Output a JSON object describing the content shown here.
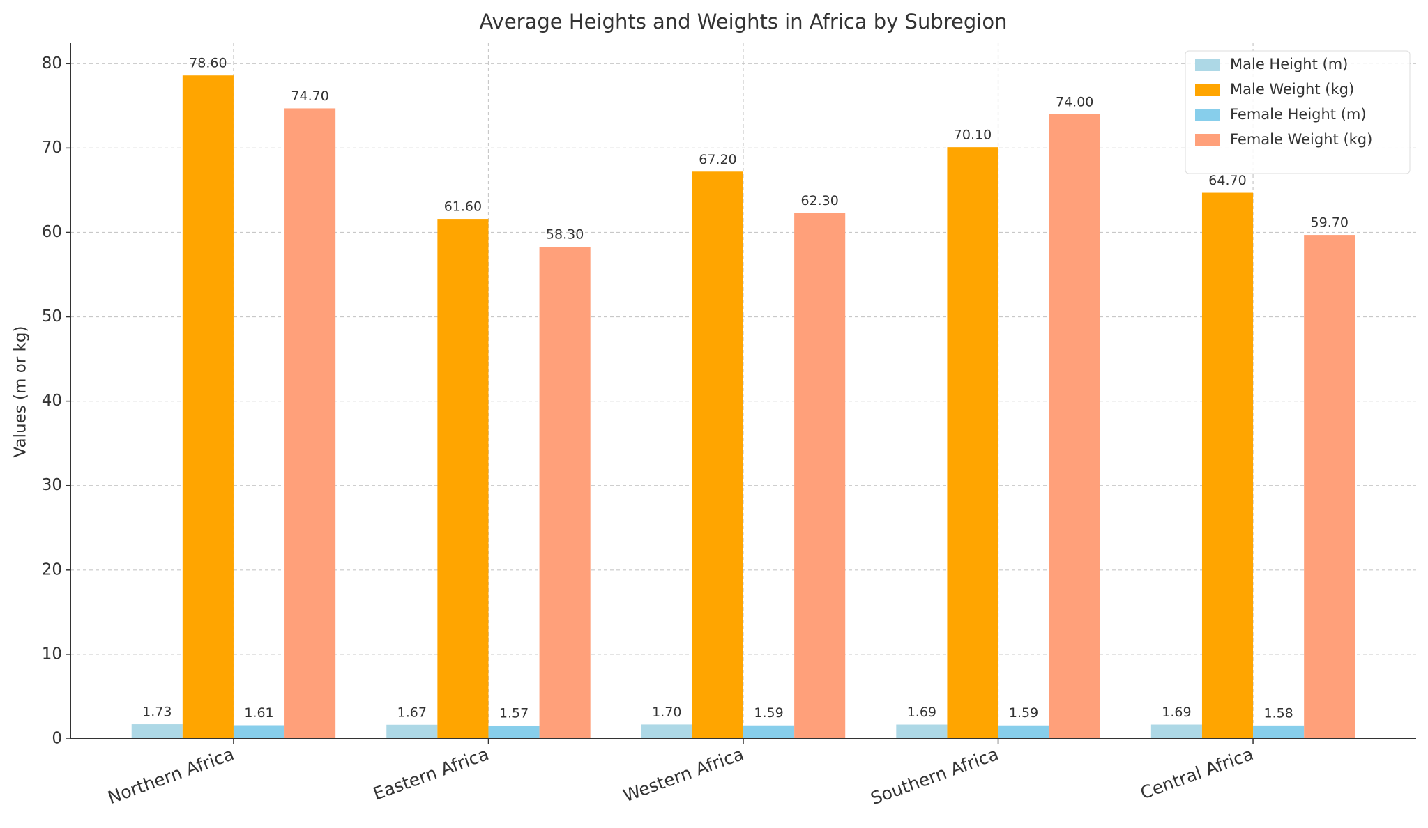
{
  "chart_data": {
    "type": "bar",
    "title": "Average Heights and Weights in Africa by Subregion",
    "y_label": "Values (m or kg)",
    "categories": [
      "Northern Africa",
      "Eastern Africa",
      "Western Africa",
      "Southern Africa",
      "Central Africa"
    ],
    "series": [
      {
        "name": "Male Height (m)",
        "color": "#add8e6",
        "values": [
          1.73,
          1.67,
          1.7,
          1.69,
          1.69
        ],
        "value_labels": [
          "1.73",
          "1.67",
          "1.70",
          "1.69",
          "1.69"
        ]
      },
      {
        "name": "Male Weight (kg)",
        "color": "#ffa500",
        "values": [
          78.6,
          61.6,
          67.2,
          70.1,
          64.7
        ],
        "value_labels": [
          "78.60",
          "61.60",
          "67.20",
          "70.10",
          "64.70"
        ]
      },
      {
        "name": "Female Height (m)",
        "color": "#87ceeb",
        "values": [
          1.61,
          1.57,
          1.59,
          1.59,
          1.58
        ],
        "value_labels": [
          "1.61",
          "1.57",
          "1.59",
          "1.59",
          "1.58"
        ]
      },
      {
        "name": "Female Weight (kg)",
        "color": "#ffa07a",
        "values": [
          74.7,
          58.3,
          62.3,
          74.0,
          59.7
        ],
        "value_labels": [
          "74.70",
          "58.30",
          "62.30",
          "74.00",
          "59.70"
        ]
      }
    ],
    "ylim": [
      0,
      82.5
    ],
    "yticks": [
      0,
      10,
      20,
      30,
      40,
      50,
      60,
      70,
      80
    ],
    "grid": true,
    "legend": "upper right"
  }
}
